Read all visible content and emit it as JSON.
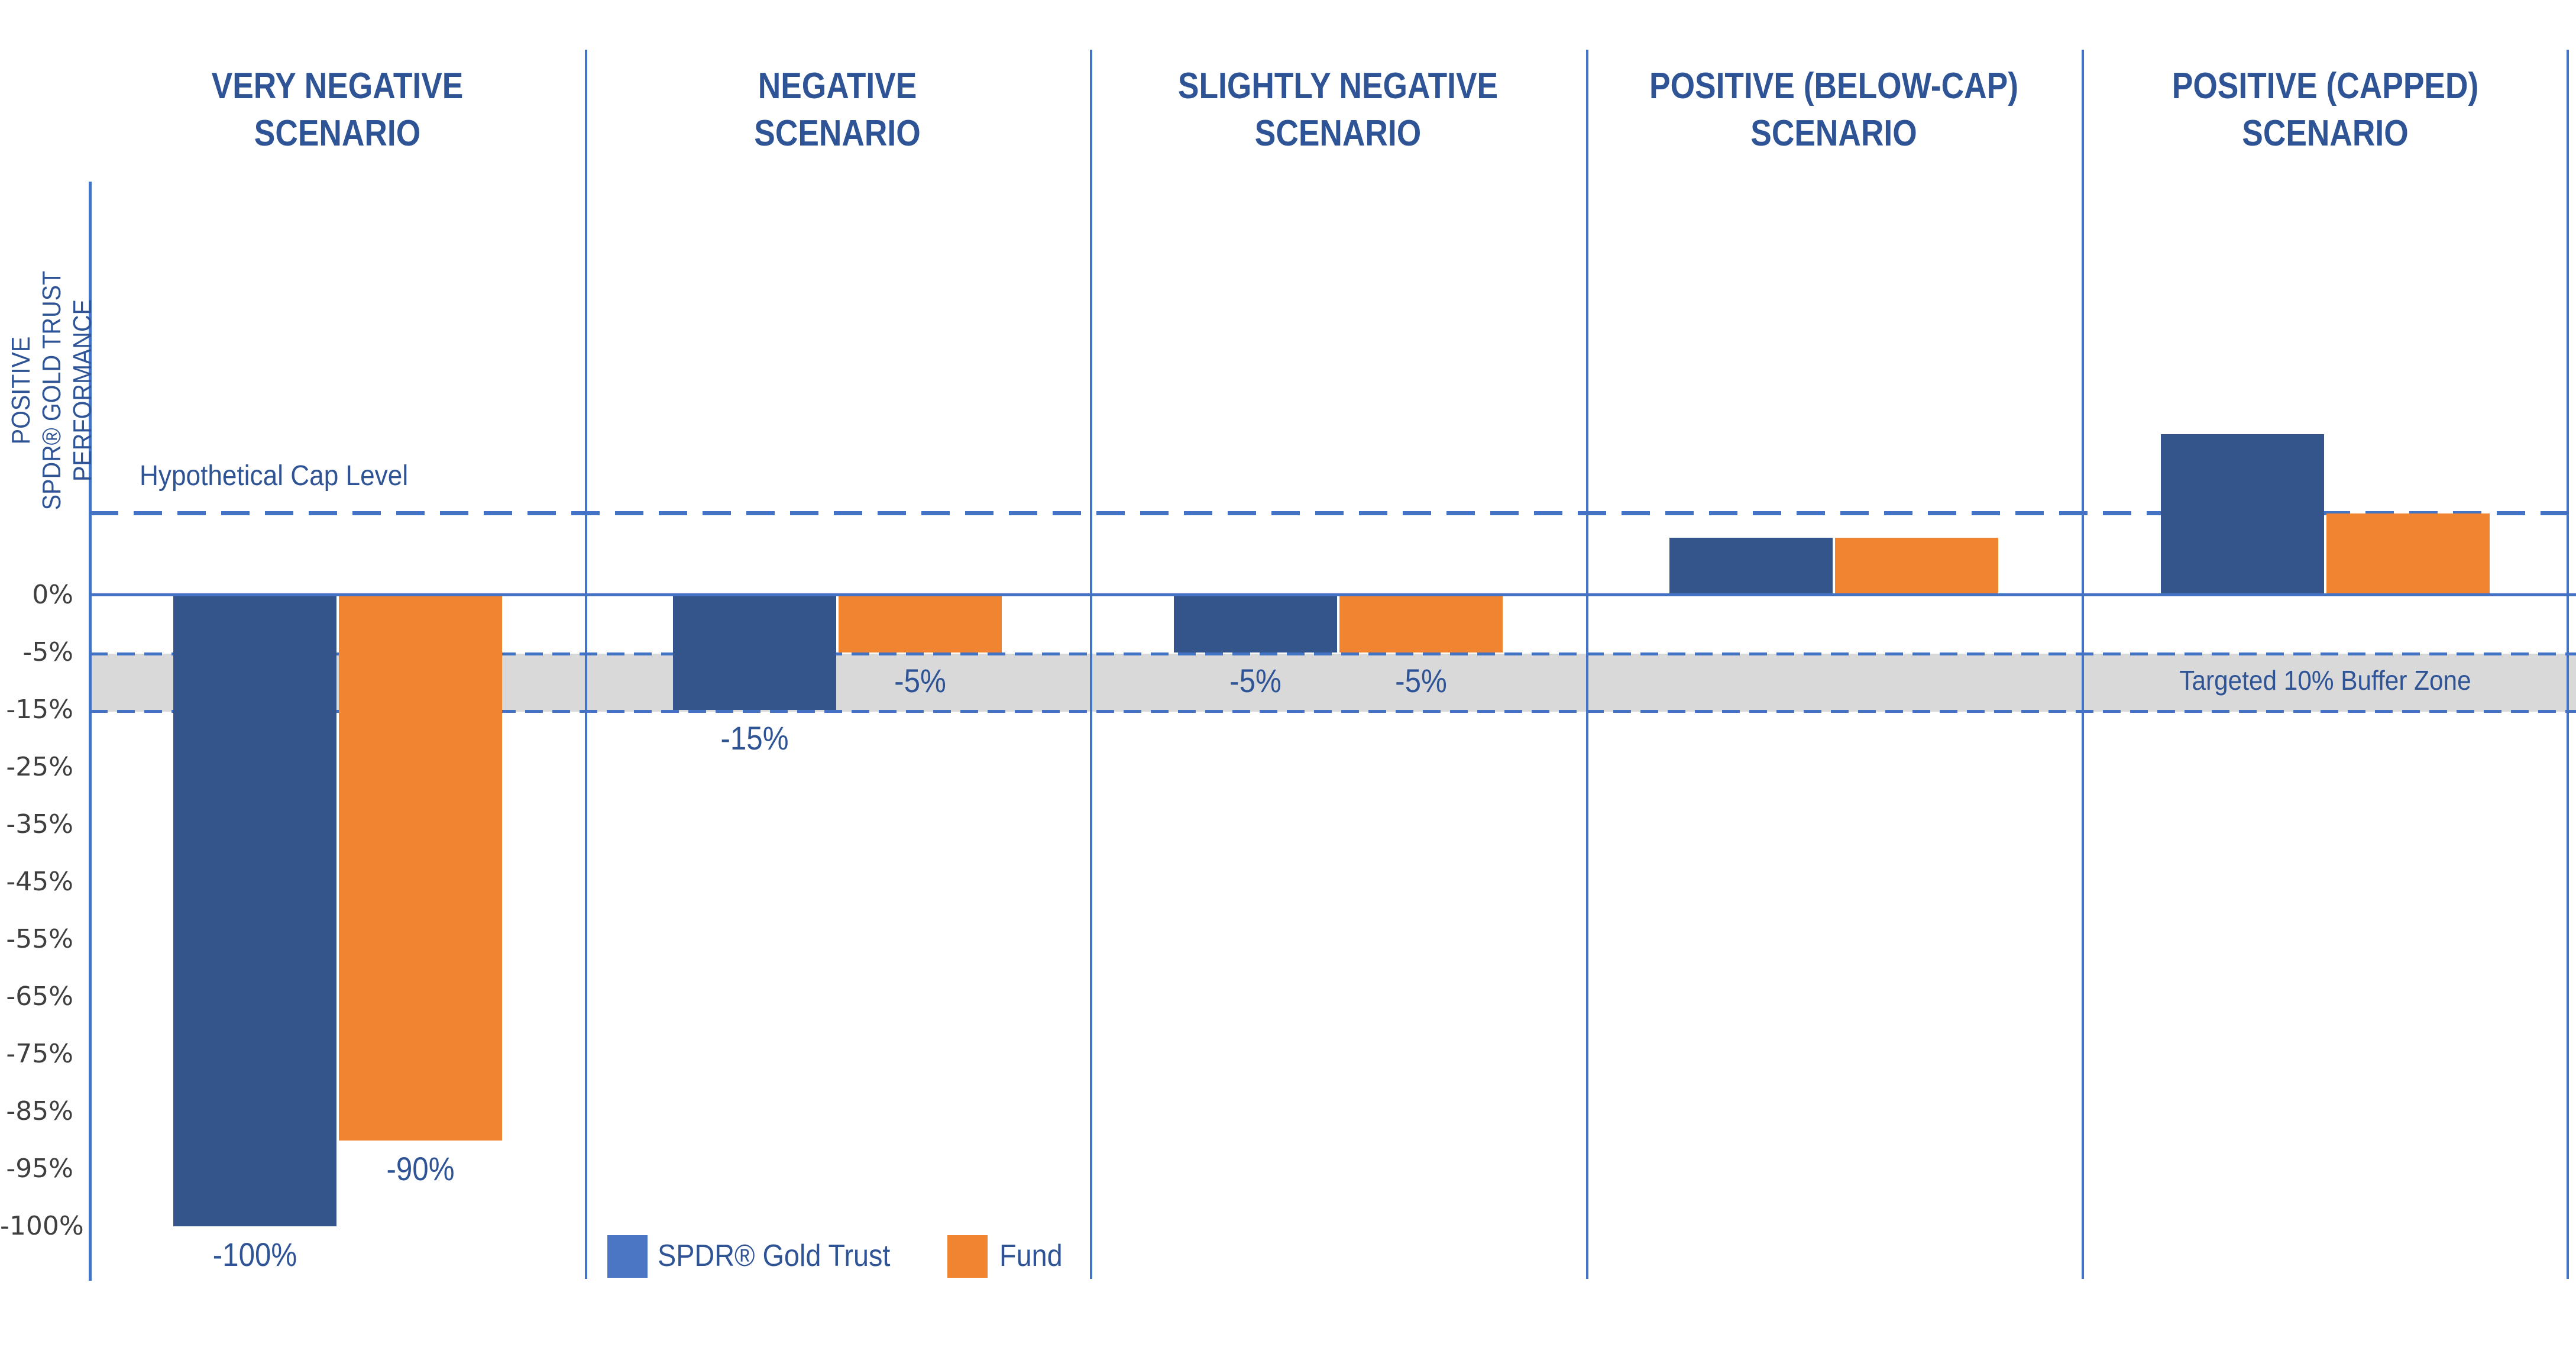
{
  "page": {
    "background": "#FFFFFF"
  },
  "colors": {
    "navy_text": "#2F5496",
    "grid_blue": "#4472C4",
    "bar_blue": "#34558B",
    "bar_orange": "#F08431",
    "legend_blue": "#4A76C4",
    "buffer_gray": "#D9D9D9",
    "tick_gray": "#3F3F3F"
  },
  "y_axis": {
    "title_lines": [
      "POSITIVE",
      "SPDR® GOLD TRUST",
      "PERFORMANCE"
    ],
    "tick_labels": [
      "0%",
      "-5%",
      "-15%",
      "-25%",
      "-35%",
      "-45%",
      "-55%",
      "-65%",
      "-75%",
      "-85%",
      "-95%",
      "-100%"
    ],
    "tick_values": [
      0,
      -5,
      -15,
      -25,
      -35,
      -45,
      -55,
      -65,
      -75,
      -85,
      -95,
      -100
    ]
  },
  "annotations": {
    "cap_label": "Hypothetical Cap Level",
    "buffer_label": "Targeted 10% Buffer Zone"
  },
  "legend": [
    {
      "label": "SPDR® Gold Trust",
      "color": "#4A76C4"
    },
    {
      "label": "Fund",
      "color": "#F08431"
    }
  ],
  "chart_data": {
    "type": "bar",
    "title": "",
    "xlabel": "",
    "ylabel": "POSITIVE SPDR® GOLD TRUST PERFORMANCE",
    "grid": "off",
    "legend_position": "bottom",
    "y_tick_labels": [
      "0%",
      "-5%",
      "-15%",
      "-25%",
      "-35%",
      "-45%",
      "-55%",
      "-65%",
      "-75%",
      "-85%",
      "-95%",
      "-100%"
    ],
    "y_tick_values": [
      0,
      -5,
      -15,
      -25,
      -35,
      -45,
      -55,
      -65,
      -75,
      -85,
      -95,
      -100
    ],
    "cap_level_pct": 7.1,
    "buffer_zone": {
      "from_pct": -5,
      "to_pct": -15,
      "label": "Targeted 10% Buffer Zone"
    },
    "categories": [
      "VERY NEGATIVE SCENARIO",
      "NEGATIVE SCENARIO",
      "SLIGHTLY NEGATIVE SCENARIO",
      "POSITIVE (BELOW-CAP) SCENARIO",
      "POSITIVE (CAPPED) SCENARIO"
    ],
    "series": [
      {
        "name": "SPDR® Gold Trust",
        "color": "#34558B",
        "values": [
          -100,
          -15,
          -5,
          5,
          14
        ]
      },
      {
        "name": "Fund",
        "color": "#F08431",
        "values": [
          -90,
          -5,
          -5,
          5,
          7.1
        ]
      }
    ],
    "panels": [
      {
        "title_lines": [
          "VERY NEGATIVE",
          "SCENARIO"
        ],
        "gold_trust": -100,
        "fund": -90,
        "gold_trust_label": "-100%",
        "fund_label": "-90%"
      },
      {
        "title_lines": [
          "NEGATIVE",
          "SCENARIO"
        ],
        "gold_trust": -15,
        "fund": -5,
        "gold_trust_label": "-15%",
        "fund_label": "-5%"
      },
      {
        "title_lines": [
          "SLIGHTLY NEGATIVE",
          "SCENARIO"
        ],
        "gold_trust": -5,
        "fund": -5,
        "gold_trust_label": "-5%",
        "fund_label": "-5%"
      },
      {
        "title_lines": [
          "POSITIVE (BELOW-CAP)",
          "SCENARIO"
        ],
        "gold_trust": 5,
        "fund": 5,
        "gold_trust_label": "",
        "fund_label": ""
      },
      {
        "title_lines": [
          "POSITIVE (CAPPED)",
          "SCENARIO"
        ],
        "gold_trust": 14,
        "fund": 7.1,
        "gold_trust_label": "",
        "fund_label": ""
      }
    ]
  }
}
